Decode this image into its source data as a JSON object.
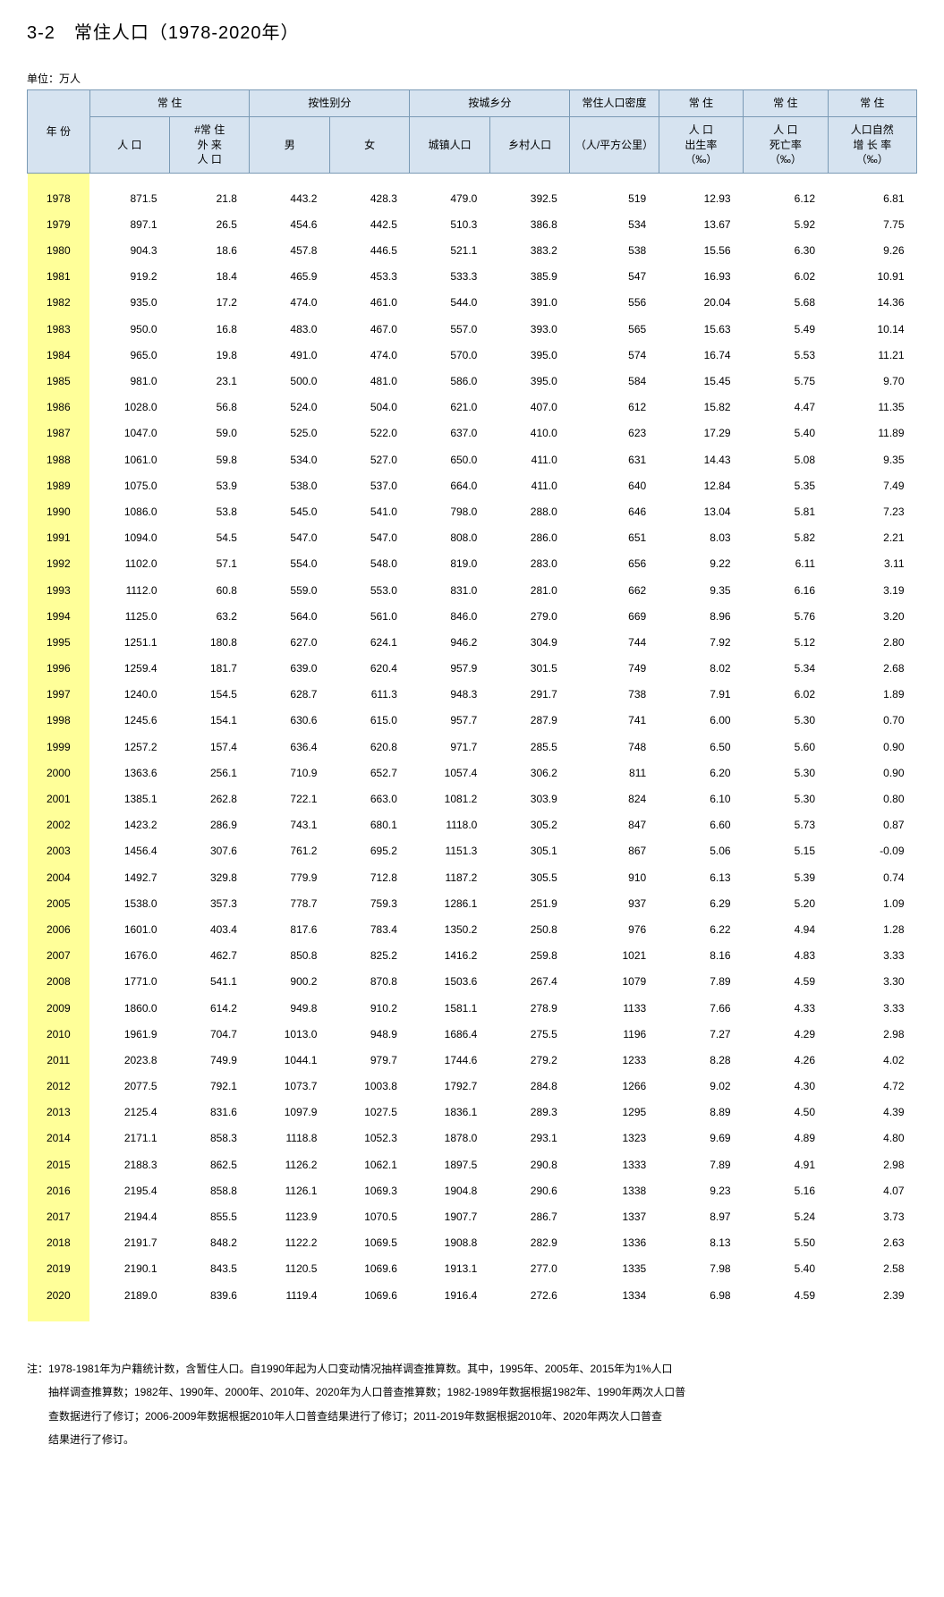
{
  "title": "3-2　常住人口（1978-2020年）",
  "unit": "单位：万人",
  "columns": {
    "year": "年 份",
    "resident_pop": "常 住",
    "resident_pop_sub": "人 口",
    "foreign_pop": "#常 住",
    "foreign_pop_sub1": "外 来",
    "foreign_pop_sub2": "人 口",
    "by_gender": "按性别分",
    "male": "男",
    "female": "女",
    "by_urban": "按城乡分",
    "urban": "城镇人口",
    "rural": "乡村人口",
    "density": "常住人口密度",
    "density_sub": "（人/平方公里）",
    "birth_rate": "常 住",
    "birth_rate_sub1": "人 口",
    "birth_rate_sub2": "出生率",
    "birth_rate_sub3": "（‰）",
    "death_rate": "常 住",
    "death_rate_sub1": "人 口",
    "death_rate_sub2": "死亡率",
    "death_rate_sub3": "（‰）",
    "growth_rate": "常 住",
    "growth_rate_sub1": "人口自然",
    "growth_rate_sub2": "增 长 率",
    "growth_rate_sub3": "（‰）"
  },
  "rows": [
    [
      "1978",
      "871.5",
      "21.8",
      "443.2",
      "428.3",
      "479.0",
      "392.5",
      "519",
      "12.93",
      "6.12",
      "6.81"
    ],
    [
      "1979",
      "897.1",
      "26.5",
      "454.6",
      "442.5",
      "510.3",
      "386.8",
      "534",
      "13.67",
      "5.92",
      "7.75"
    ],
    [
      "1980",
      "904.3",
      "18.6",
      "457.8",
      "446.5",
      "521.1",
      "383.2",
      "538",
      "15.56",
      "6.30",
      "9.26"
    ],
    [
      "1981",
      "919.2",
      "18.4",
      "465.9",
      "453.3",
      "533.3",
      "385.9",
      "547",
      "16.93",
      "6.02",
      "10.91"
    ],
    [
      "1982",
      "935.0",
      "17.2",
      "474.0",
      "461.0",
      "544.0",
      "391.0",
      "556",
      "20.04",
      "5.68",
      "14.36"
    ],
    [
      "1983",
      "950.0",
      "16.8",
      "483.0",
      "467.0",
      "557.0",
      "393.0",
      "565",
      "15.63",
      "5.49",
      "10.14"
    ],
    [
      "1984",
      "965.0",
      "19.8",
      "491.0",
      "474.0",
      "570.0",
      "395.0",
      "574",
      "16.74",
      "5.53",
      "11.21"
    ],
    [
      "1985",
      "981.0",
      "23.1",
      "500.0",
      "481.0",
      "586.0",
      "395.0",
      "584",
      "15.45",
      "5.75",
      "9.70"
    ],
    [
      "1986",
      "1028.0",
      "56.8",
      "524.0",
      "504.0",
      "621.0",
      "407.0",
      "612",
      "15.82",
      "4.47",
      "11.35"
    ],
    [
      "1987",
      "1047.0",
      "59.0",
      "525.0",
      "522.0",
      "637.0",
      "410.0",
      "623",
      "17.29",
      "5.40",
      "11.89"
    ],
    [
      "1988",
      "1061.0",
      "59.8",
      "534.0",
      "527.0",
      "650.0",
      "411.0",
      "631",
      "14.43",
      "5.08",
      "9.35"
    ],
    [
      "1989",
      "1075.0",
      "53.9",
      "538.0",
      "537.0",
      "664.0",
      "411.0",
      "640",
      "12.84",
      "5.35",
      "7.49"
    ],
    [
      "1990",
      "1086.0",
      "53.8",
      "545.0",
      "541.0",
      "798.0",
      "288.0",
      "646",
      "13.04",
      "5.81",
      "7.23"
    ],
    [
      "1991",
      "1094.0",
      "54.5",
      "547.0",
      "547.0",
      "808.0",
      "286.0",
      "651",
      "8.03",
      "5.82",
      "2.21"
    ],
    [
      "1992",
      "1102.0",
      "57.1",
      "554.0",
      "548.0",
      "819.0",
      "283.0",
      "656",
      "9.22",
      "6.11",
      "3.11"
    ],
    [
      "1993",
      "1112.0",
      "60.8",
      "559.0",
      "553.0",
      "831.0",
      "281.0",
      "662",
      "9.35",
      "6.16",
      "3.19"
    ],
    [
      "1994",
      "1125.0",
      "63.2",
      "564.0",
      "561.0",
      "846.0",
      "279.0",
      "669",
      "8.96",
      "5.76",
      "3.20"
    ],
    [
      "1995",
      "1251.1",
      "180.8",
      "627.0",
      "624.1",
      "946.2",
      "304.9",
      "744",
      "7.92",
      "5.12",
      "2.80"
    ],
    [
      "1996",
      "1259.4",
      "181.7",
      "639.0",
      "620.4",
      "957.9",
      "301.5",
      "749",
      "8.02",
      "5.34",
      "2.68"
    ],
    [
      "1997",
      "1240.0",
      "154.5",
      "628.7",
      "611.3",
      "948.3",
      "291.7",
      "738",
      "7.91",
      "6.02",
      "1.89"
    ],
    [
      "1998",
      "1245.6",
      "154.1",
      "630.6",
      "615.0",
      "957.7",
      "287.9",
      "741",
      "6.00",
      "5.30",
      "0.70"
    ],
    [
      "1999",
      "1257.2",
      "157.4",
      "636.4",
      "620.8",
      "971.7",
      "285.5",
      "748",
      "6.50",
      "5.60",
      "0.90"
    ],
    [
      "2000",
      "1363.6",
      "256.1",
      "710.9",
      "652.7",
      "1057.4",
      "306.2",
      "811",
      "6.20",
      "5.30",
      "0.90"
    ],
    [
      "2001",
      "1385.1",
      "262.8",
      "722.1",
      "663.0",
      "1081.2",
      "303.9",
      "824",
      "6.10",
      "5.30",
      "0.80"
    ],
    [
      "2002",
      "1423.2",
      "286.9",
      "743.1",
      "680.1",
      "1118.0",
      "305.2",
      "847",
      "6.60",
      "5.73",
      "0.87"
    ],
    [
      "2003",
      "1456.4",
      "307.6",
      "761.2",
      "695.2",
      "1151.3",
      "305.1",
      "867",
      "5.06",
      "5.15",
      "-0.09"
    ],
    [
      "2004",
      "1492.7",
      "329.8",
      "779.9",
      "712.8",
      "1187.2",
      "305.5",
      "910",
      "6.13",
      "5.39",
      "0.74"
    ],
    [
      "2005",
      "1538.0",
      "357.3",
      "778.7",
      "759.3",
      "1286.1",
      "251.9",
      "937",
      "6.29",
      "5.20",
      "1.09"
    ],
    [
      "2006",
      "1601.0",
      "403.4",
      "817.6",
      "783.4",
      "1350.2",
      "250.8",
      "976",
      "6.22",
      "4.94",
      "1.28"
    ],
    [
      "2007",
      "1676.0",
      "462.7",
      "850.8",
      "825.2",
      "1416.2",
      "259.8",
      "1021",
      "8.16",
      "4.83",
      "3.33"
    ],
    [
      "2008",
      "1771.0",
      "541.1",
      "900.2",
      "870.8",
      "1503.6",
      "267.4",
      "1079",
      "7.89",
      "4.59",
      "3.30"
    ],
    [
      "2009",
      "1860.0",
      "614.2",
      "949.8",
      "910.2",
      "1581.1",
      "278.9",
      "1133",
      "7.66",
      "4.33",
      "3.33"
    ],
    [
      "2010",
      "1961.9",
      "704.7",
      "1013.0",
      "948.9",
      "1686.4",
      "275.5",
      "1196",
      "7.27",
      "4.29",
      "2.98"
    ],
    [
      "2011",
      "2023.8",
      "749.9",
      "1044.1",
      "979.7",
      "1744.6",
      "279.2",
      "1233",
      "8.28",
      "4.26",
      "4.02"
    ],
    [
      "2012",
      "2077.5",
      "792.1",
      "1073.7",
      "1003.8",
      "1792.7",
      "284.8",
      "1266",
      "9.02",
      "4.30",
      "4.72"
    ],
    [
      "2013",
      "2125.4",
      "831.6",
      "1097.9",
      "1027.5",
      "1836.1",
      "289.3",
      "1295",
      "8.89",
      "4.50",
      "4.39"
    ],
    [
      "2014",
      "2171.1",
      "858.3",
      "1118.8",
      "1052.3",
      "1878.0",
      "293.1",
      "1323",
      "9.69",
      "4.89",
      "4.80"
    ],
    [
      "2015",
      "2188.3",
      "862.5",
      "1126.2",
      "1062.1",
      "1897.5",
      "290.8",
      "1333",
      "7.89",
      "4.91",
      "2.98"
    ],
    [
      "2016",
      "2195.4",
      "858.8",
      "1126.1",
      "1069.3",
      "1904.8",
      "290.6",
      "1338",
      "9.23",
      "5.16",
      "4.07"
    ],
    [
      "2017",
      "2194.4",
      "855.5",
      "1123.9",
      "1070.5",
      "1907.7",
      "286.7",
      "1337",
      "8.97",
      "5.24",
      "3.73"
    ],
    [
      "2018",
      "2191.7",
      "848.2",
      "1122.2",
      "1069.5",
      "1908.8",
      "282.9",
      "1336",
      "8.13",
      "5.50",
      "2.63"
    ],
    [
      "2019",
      "2190.1",
      "843.5",
      "1120.5",
      "1069.6",
      "1913.1",
      "277.0",
      "1335",
      "7.98",
      "5.40",
      "2.58"
    ],
    [
      "2020",
      "2189.0",
      "839.6",
      "1119.4",
      "1069.6",
      "1916.4",
      "272.6",
      "1334",
      "6.98",
      "4.59",
      "2.39"
    ]
  ],
  "footnote": [
    "注：1978-1981年为户籍统计数，含暂住人口。自1990年起为人口变动情况抽样调查推算数。其中，1995年、2005年、2015年为1%人口",
    "抽样调查推算数；1982年、1990年、2000年、2010年、2020年为人口普查推算数；1982-1989年数据根据1982年、1990年两次人口普",
    "查数据进行了修订；2006-2009年数据根据2010年人口普查结果进行了修订；2011-2019年数据根据2010年、2020年两次人口普查",
    "结果进行了修订。"
  ],
  "styling": {
    "header_bg": "#d6e3f0",
    "header_border": "#7a9ab5",
    "year_col_bg": "#ffff99",
    "title_fontsize": 20,
    "body_fontsize": 12,
    "text_color": "#000000",
    "bg_color": "#ffffff"
  }
}
